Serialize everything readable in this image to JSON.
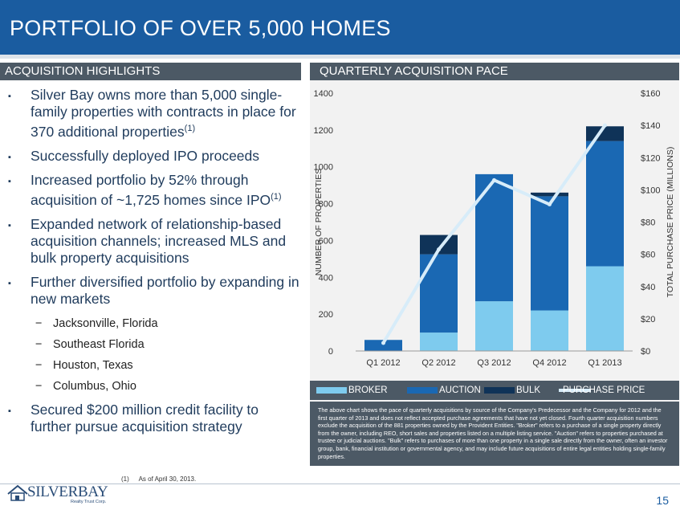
{
  "slide": {
    "title": "PORTFOLIO OF OVER 5,000 HOMES",
    "page_number": "15"
  },
  "left": {
    "header": "ACQUISITION HIGHLIGHTS",
    "bullets": [
      {
        "text": "Silver Bay owns more than 5,000 single-family properties with contracts in place for 370 additional properties",
        "sup": "(1)"
      },
      {
        "text": "Successfully deployed IPO proceeds",
        "sup": ""
      },
      {
        "text": "Increased portfolio by 52% through acquisition of ~1,725 homes since IPO",
        "sup": "(1)"
      },
      {
        "text": "Expanded network of relationship-based acquisition channels; increased MLS and bulk property acquisitions",
        "sup": ""
      },
      {
        "text": "Further diversified portfolio by expanding in new markets",
        "sup": ""
      },
      {
        "text": "Secured $200 million credit facility to further pursue acquisition strategy",
        "sup": ""
      }
    ],
    "markets": [
      "Jacksonville, Florida",
      "Southeast Florida",
      "Houston, Texas",
      "Columbus, Ohio"
    ],
    "bullet_glyph": "▪",
    "dash_glyph": "−"
  },
  "right": {
    "header": "QUARTERLY ACQUISITION PACE",
    "note": "The above chart shows the pace of quarterly acquisitions by source of the Company's Predecessor and the Company for 2012 and the first quarter of 2013 and does not reflect accepted purchase agreements that have not yet closed. Fourth quarter acquisition numbers exclude the acquisition of the 881 properties owned by the Provident Entities. \"Broker\" refers to a purchase of a single property directly from the owner, including REO, short sales and properties listed on a multiple listing service. \"Auction\" refers to properties purchased at trustee or judicial auctions. \"Bulk\" refers to purchases of more than one property in a single sale directly from the owner, often an investor group, bank, financial institution or governmental agency, and may include future acquisitions of entire legal entities holding single-family properties."
  },
  "footnote": {
    "num": "(1)",
    "text": "As of April 30, 2013."
  },
  "logo": {
    "name": "SILVERBAY",
    "sub": "Realty Trust Corp."
  },
  "chart_data": {
    "type": "bar",
    "stacked": true,
    "categories": [
      "Q1 2012",
      "Q2 2012",
      "Q3 2012",
      "Q4 2012",
      "Q1 2013"
    ],
    "series": [
      {
        "name": "BROKER",
        "values": [
          0,
          100,
          270,
          220,
          460
        ],
        "color": "#7ecbee"
      },
      {
        "name": "AUCTION",
        "values": [
          60,
          425,
          690,
          620,
          680
        ],
        "color": "#1a68b3"
      },
      {
        "name": "BULK",
        "values": [
          0,
          105,
          0,
          20,
          80
        ],
        "color": "#0f3358"
      }
    ],
    "line_series": {
      "name": "PURCHASE PRICE",
      "values": [
        5,
        63,
        106,
        91,
        140
      ],
      "color": "#d7ecf9",
      "axis": "right"
    },
    "ylabel": "NUMBER OF PROPERTIES",
    "ylim": [
      0,
      1400
    ],
    "yticks": [
      0,
      200,
      400,
      600,
      800,
      1000,
      1200,
      1400
    ],
    "y2label": "TOTAL PURCHASE PRICE (MILLIONS)",
    "y2lim": [
      0,
      160
    ],
    "y2ticks": [
      "$0",
      "$20",
      "$40",
      "$60",
      "$80",
      "$100",
      "$120",
      "$140",
      "$160"
    ],
    "grid": false,
    "legend": "bottom"
  }
}
